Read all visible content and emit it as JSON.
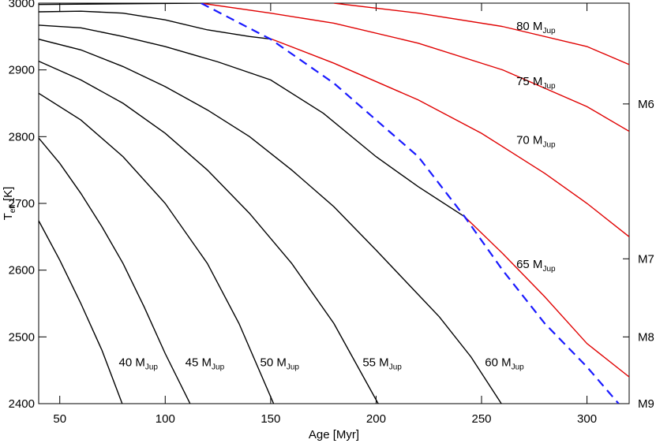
{
  "chart_data": {
    "type": "line",
    "xlabel": "Age [Myr]",
    "ylabel": {
      "text": "T",
      "sub": "eff",
      "rest": " [K]"
    },
    "xlim": [
      40,
      320
    ],
    "ylim": [
      2400,
      3000
    ],
    "xticks": [
      50,
      100,
      150,
      200,
      250,
      300
    ],
    "yticks": [
      2400,
      2500,
      2600,
      2700,
      2800,
      2900,
      3000
    ],
    "y2lim": [
      2400,
      3000
    ],
    "y2ticks": [
      {
        "value": 2849,
        "label": "M6"
      },
      {
        "value": 2617,
        "label": "M7"
      },
      {
        "value": 2500,
        "label": "M8"
      },
      {
        "value": 2400,
        "label": "M9"
      }
    ],
    "series": [
      {
        "color": "#000000",
        "x": [
          40,
          50,
          60,
          70,
          79.6
        ],
        "values": [
          2674,
          2615,
          2550,
          2480,
          2400
        ]
      },
      {
        "color": "#000000",
        "x": [
          40,
          50,
          60,
          70,
          80,
          90,
          100,
          111.8
        ],
        "values": [
          2798,
          2760,
          2715,
          2665,
          2610,
          2545,
          2475,
          2400
        ]
      },
      {
        "color": "#000000",
        "x": [
          40,
          60,
          80,
          100,
          120,
          135,
          151.4
        ],
        "values": [
          2865,
          2825,
          2770,
          2700,
          2610,
          2520,
          2400
        ]
      },
      {
        "color": "#000000",
        "x": [
          40,
          60,
          80,
          100,
          120,
          140,
          160,
          180,
          201
        ],
        "values": [
          2913,
          2885,
          2850,
          2805,
          2750,
          2685,
          2610,
          2520,
          2400
        ]
      },
      {
        "color": "#000000",
        "x": [
          40,
          60,
          80,
          100,
          120,
          140,
          160,
          180,
          200,
          215,
          230,
          245,
          259.4
        ],
        "values": [
          2946,
          2930,
          2905,
          2875,
          2840,
          2800,
          2750,
          2695,
          2630,
          2580,
          2530,
          2470,
          2400
        ]
      },
      {
        "color": "#000000",
        "x": [
          40,
          60,
          80,
          100,
          125,
          150,
          175,
          200,
          220,
          242
        ],
        "values": [
          2967,
          2963,
          2950,
          2935,
          2912,
          2885,
          2835,
          2770,
          2725,
          2680
        ]
      },
      {
        "color": "#000000",
        "x": [
          40,
          60,
          80,
          100,
          120,
          140,
          150.6
        ],
        "values": [
          2987,
          2988,
          2985,
          2975,
          2960,
          2950,
          2946
        ]
      },
      {
        "color": "#000000",
        "x": [
          40,
          80,
          117
        ],
        "values": [
          2998,
          2999,
          3000
        ]
      },
      {
        "color": "#e00000",
        "x": [
          180,
          220,
          260,
          300,
          320
        ],
        "values": [
          3000,
          2985,
          2965,
          2935,
          2908
        ]
      },
      {
        "color": "#e00000",
        "x": [
          117,
          150,
          180,
          220,
          260,
          300,
          320
        ],
        "values": [
          3000,
          2985,
          2970,
          2940,
          2900,
          2845,
          2808
        ]
      },
      {
        "color": "#e00000",
        "x": [
          150.6,
          180,
          220,
          250,
          280,
          300,
          320
        ],
        "values": [
          2946,
          2910,
          2855,
          2805,
          2745,
          2700,
          2650
        ]
      },
      {
        "color": "#e00000",
        "x": [
          242,
          260,
          280,
          300,
          320
        ],
        "values": [
          2680,
          2625,
          2560,
          2490,
          2440
        ]
      },
      {
        "color": "#1a1aff",
        "dashed": true,
        "x": [
          117,
          150,
          180,
          220,
          242,
          260,
          280,
          300,
          315
        ],
        "values": [
          3000,
          2946,
          2880,
          2770,
          2680,
          2600,
          2520,
          2455,
          2400
        ]
      }
    ],
    "annotations": [
      {
        "text": "40 M",
        "sub": "Jup",
        "x": 78,
        "y": 2462
      },
      {
        "text": "45 M",
        "sub": "Jup",
        "x": 109.5,
        "y": 2462
      },
      {
        "text": "50 M",
        "sub": "Jup",
        "x": 145,
        "y": 2462
      },
      {
        "text": "55 M",
        "sub": "Jup",
        "x": 193.6,
        "y": 2462
      },
      {
        "text": "60 M",
        "sub": "Jup",
        "x": 251.6,
        "y": 2462
      },
      {
        "text": "65 M",
        "sub": "Jup",
        "x": 266.5,
        "y": 2609
      },
      {
        "text": "70 M",
        "sub": "Jup",
        "x": 266.5,
        "y": 2795
      },
      {
        "text": "75 M",
        "sub": "Jup",
        "x": 266.5,
        "y": 2883
      },
      {
        "text": "80 M",
        "sub": "Jup",
        "x": 266.5,
        "y": 2966
      }
    ]
  }
}
